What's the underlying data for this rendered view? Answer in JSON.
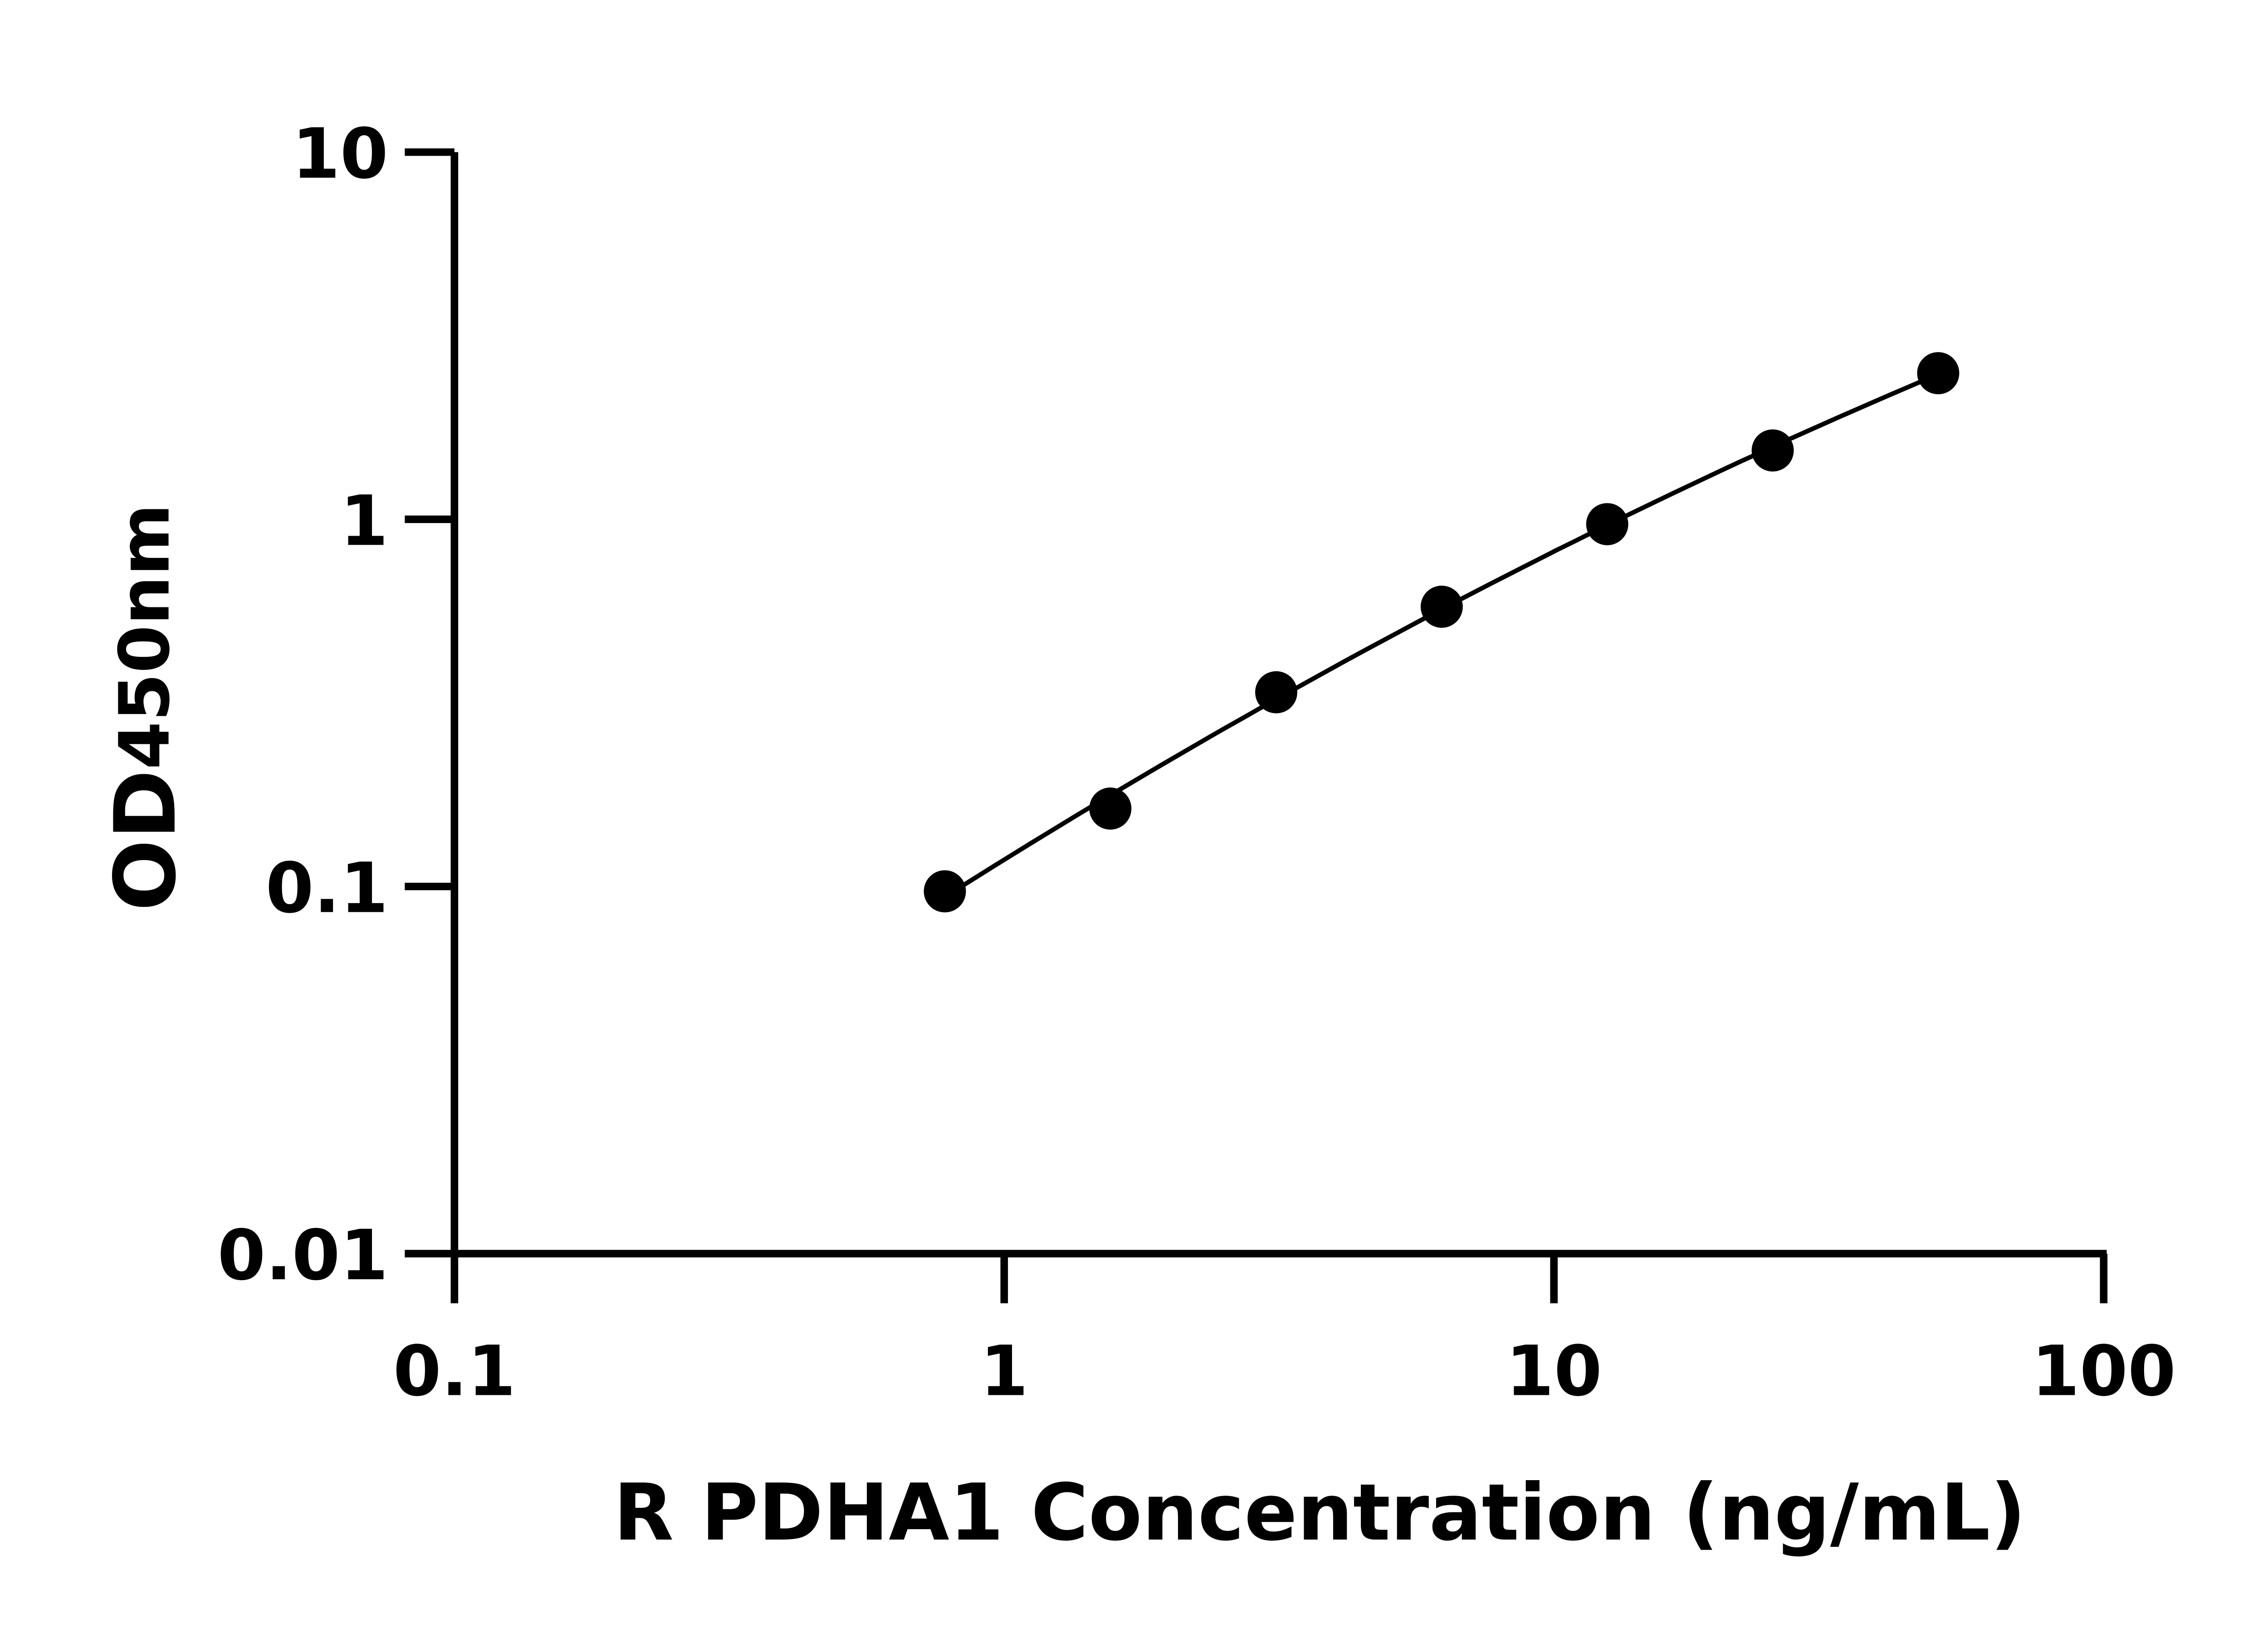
{
  "chart_data": {
    "type": "scatter",
    "title": "",
    "xlabel": "R PDHA1 Concentration (ng/mL)",
    "ylabel_main": "OD",
    "ylabel_sub": "450nm",
    "x_scale": "log",
    "y_scale": "log",
    "xlim": [
      0.1,
      100
    ],
    "ylim": [
      0.01,
      10
    ],
    "x_ticks": [
      0.1,
      1,
      10,
      100
    ],
    "x_tick_labels": [
      "0.1",
      "1",
      "10",
      "100"
    ],
    "y_ticks": [
      0.01,
      0.1,
      1,
      10
    ],
    "y_tick_labels": [
      "0.01",
      "0.1",
      "1",
      "10"
    ],
    "grid": false,
    "legend": "none",
    "fit_line": true,
    "marker_color": "#000000",
    "series": [
      {
        "x": [
          0.78,
          1.56,
          3.125,
          6.25,
          12.5,
          25,
          50
        ],
        "y": [
          0.097,
          0.163,
          0.338,
          0.578,
          0.97,
          1.54,
          2.5
        ]
      }
    ]
  }
}
